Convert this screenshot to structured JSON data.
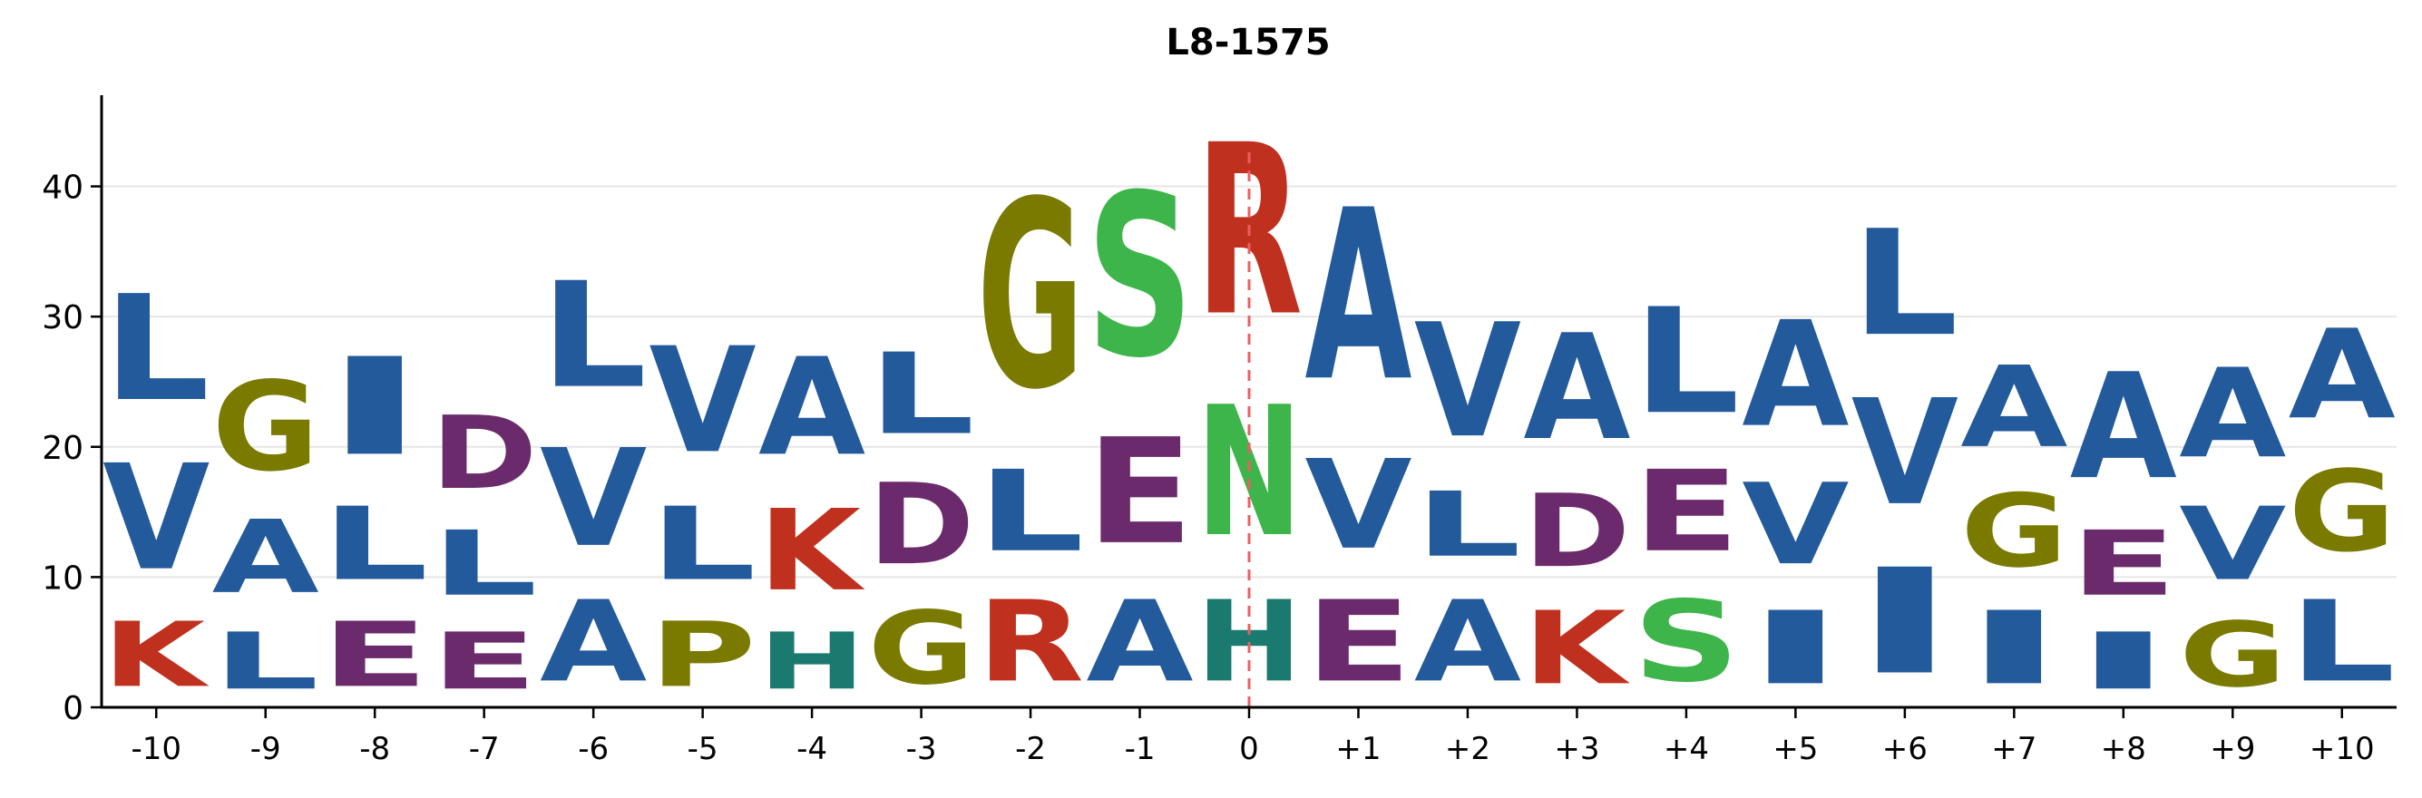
{
  "chart_data": {
    "type": "sequence_logo",
    "title": "L8-1575",
    "ylim": [
      0,
      47
    ],
    "y_ticks": [
      0,
      10,
      20,
      30,
      40
    ],
    "grid": "horizontal",
    "reference_position": "0",
    "colors": {
      "blue": "#235a9c",
      "purple": "#6b2a6b",
      "red": "#c0301f",
      "olive": "#7a7a00",
      "green": "#3db54a",
      "teal": "#1a7a70",
      "reference_line": "#ec5f5f",
      "grid": "#e6e6e6"
    },
    "color_map": {
      "A": "blue",
      "V": "blue",
      "L": "blue",
      "I": "blue",
      "D": "purple",
      "E": "purple",
      "K": "red",
      "R": "red",
      "G": "olive",
      "P": "olive",
      "N": "green",
      "S": "green",
      "H": "teal"
    },
    "positions": [
      {
        "label": "-10",
        "stack": [
          {
            "letter": "K",
            "value": 8
          },
          {
            "letter": "V",
            "value": 13
          },
          {
            "letter": "L",
            "value": 13
          }
        ]
      },
      {
        "label": "-9",
        "stack": [
          {
            "letter": "L",
            "value": 7
          },
          {
            "letter": "A",
            "value": 9
          },
          {
            "letter": "G",
            "value": 11
          }
        ]
      },
      {
        "label": "-8",
        "stack": [
          {
            "letter": "E",
            "value": 8
          },
          {
            "letter": "L",
            "value": 9
          },
          {
            "letter": "I",
            "value": 12
          }
        ]
      },
      {
        "label": "-7",
        "stack": [
          {
            "letter": "E",
            "value": 7
          },
          {
            "letter": "L",
            "value": 8
          },
          {
            "letter": "D",
            "value": 9
          }
        ]
      },
      {
        "label": "-6",
        "stack": [
          {
            "letter": "A",
            "value": 10
          },
          {
            "letter": "V",
            "value": 12
          },
          {
            "letter": "L",
            "value": 13
          }
        ]
      },
      {
        "label": "-5",
        "stack": [
          {
            "letter": "P",
            "value": 8
          },
          {
            "letter": "L",
            "value": 9
          },
          {
            "letter": "V",
            "value": 13
          }
        ]
      },
      {
        "label": "-4",
        "stack": [
          {
            "letter": "H",
            "value": 7
          },
          {
            "letter": "K",
            "value": 10
          },
          {
            "letter": "A",
            "value": 12
          }
        ]
      },
      {
        "label": "-3",
        "stack": [
          {
            "letter": "G",
            "value": 9
          },
          {
            "letter": "D",
            "value": 10
          },
          {
            "letter": "L",
            "value": 10
          }
        ]
      },
      {
        "label": "-2",
        "stack": [
          {
            "letter": "R",
            "value": 10
          },
          {
            "letter": "L",
            "value": 10
          },
          {
            "letter": "G",
            "value": 23
          }
        ]
      },
      {
        "label": "-1",
        "stack": [
          {
            "letter": "A",
            "value": 10
          },
          {
            "letter": "E",
            "value": 13
          },
          {
            "letter": "S",
            "value": 20
          }
        ]
      },
      {
        "label": "0",
        "stack": [
          {
            "letter": "H",
            "value": 10
          },
          {
            "letter": "N",
            "value": 16
          },
          {
            "letter": "R",
            "value": 21
          }
        ]
      },
      {
        "label": "+1",
        "stack": [
          {
            "letter": "E",
            "value": 10
          },
          {
            "letter": "V",
            "value": 11
          },
          {
            "letter": "A",
            "value": 21
          }
        ]
      },
      {
        "label": "+2",
        "stack": [
          {
            "letter": "A",
            "value": 10
          },
          {
            "letter": "L",
            "value": 8
          },
          {
            "letter": "V",
            "value": 14
          }
        ]
      },
      {
        "label": "+3",
        "stack": [
          {
            "letter": "K",
            "value": 9
          },
          {
            "letter": "D",
            "value": 9
          },
          {
            "letter": "A",
            "value": 13
          }
        ]
      },
      {
        "label": "+4",
        "stack": [
          {
            "letter": "S",
            "value": 10
          },
          {
            "letter": "E",
            "value": 10
          },
          {
            "letter": "L",
            "value": 13
          }
        ]
      },
      {
        "label": "+5",
        "stack": [
          {
            "letter": "I",
            "value": 9
          },
          {
            "letter": "V",
            "value": 10
          },
          {
            "letter": "A",
            "value": 13
          }
        ]
      },
      {
        "label": "+6",
        "stack": [
          {
            "letter": "I",
            "value": 13
          },
          {
            "letter": "V",
            "value": 13
          },
          {
            "letter": "L",
            "value": 13
          }
        ]
      },
      {
        "label": "+7",
        "stack": [
          {
            "letter": "I",
            "value": 9
          },
          {
            "letter": "G",
            "value": 9
          },
          {
            "letter": "A",
            "value": 10
          }
        ]
      },
      {
        "label": "+8",
        "stack": [
          {
            "letter": "I",
            "value": 7
          },
          {
            "letter": "E",
            "value": 8
          },
          {
            "letter": "A",
            "value": 13
          }
        ]
      },
      {
        "label": "+9",
        "stack": [
          {
            "letter": "G",
            "value": 8
          },
          {
            "letter": "V",
            "value": 9
          },
          {
            "letter": "A",
            "value": 11
          }
        ]
      },
      {
        "label": "+10",
        "stack": [
          {
            "letter": "L",
            "value": 10
          },
          {
            "letter": "G",
            "value": 10
          },
          {
            "letter": "A",
            "value": 11
          }
        ]
      }
    ]
  }
}
